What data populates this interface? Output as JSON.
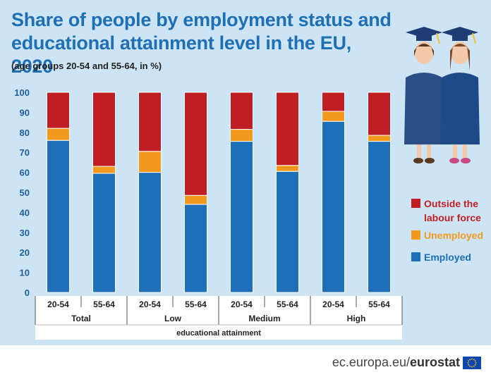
{
  "header": {
    "title": "Share of people by employment status and educational attainment level in the EU, 2020",
    "subtitle": "(age groups 20-54 and 55-64, in %)"
  },
  "footer": {
    "site": "ec.europa.eu/",
    "brand": "eurostat"
  },
  "chart_data": {
    "type": "bar",
    "stacked": true,
    "title": "Share of people by employment status and educational attainment level in the EU, 2020",
    "subtitle": "(age groups 20-54 and 55-64, in %)",
    "categories": [
      "20-54",
      "55-64",
      "20-54",
      "55-64",
      "20-54",
      "55-64",
      "20-54",
      "55-64"
    ],
    "groups": [
      "Total",
      "Low",
      "Medium",
      "High"
    ],
    "xlabel": "educational attainment",
    "ylabel": "",
    "ylim": [
      0,
      100
    ],
    "yticks": [
      0,
      10,
      20,
      30,
      40,
      50,
      60,
      70,
      80,
      90,
      100
    ],
    "grid": false,
    "legend_position": "right",
    "series": [
      {
        "name": "Employed",
        "color": "#1d6fb8",
        "values": [
          76,
          59.5,
          60,
          44,
          75.5,
          60.5,
          85.5,
          75.5
        ]
      },
      {
        "name": "Unemployed",
        "color": "#f39a1e",
        "values": [
          6,
          3.5,
          10.5,
          4.5,
          6,
          3,
          5,
          3
        ]
      },
      {
        "name": "Outside the labour force",
        "color": "#bf1e24",
        "values": [
          18,
          37,
          29.5,
          51.5,
          18.5,
          36.5,
          9.5,
          21.5
        ]
      }
    ],
    "legend_order": [
      "Outside the labour force",
      "Unemployed",
      "Employed"
    ]
  }
}
